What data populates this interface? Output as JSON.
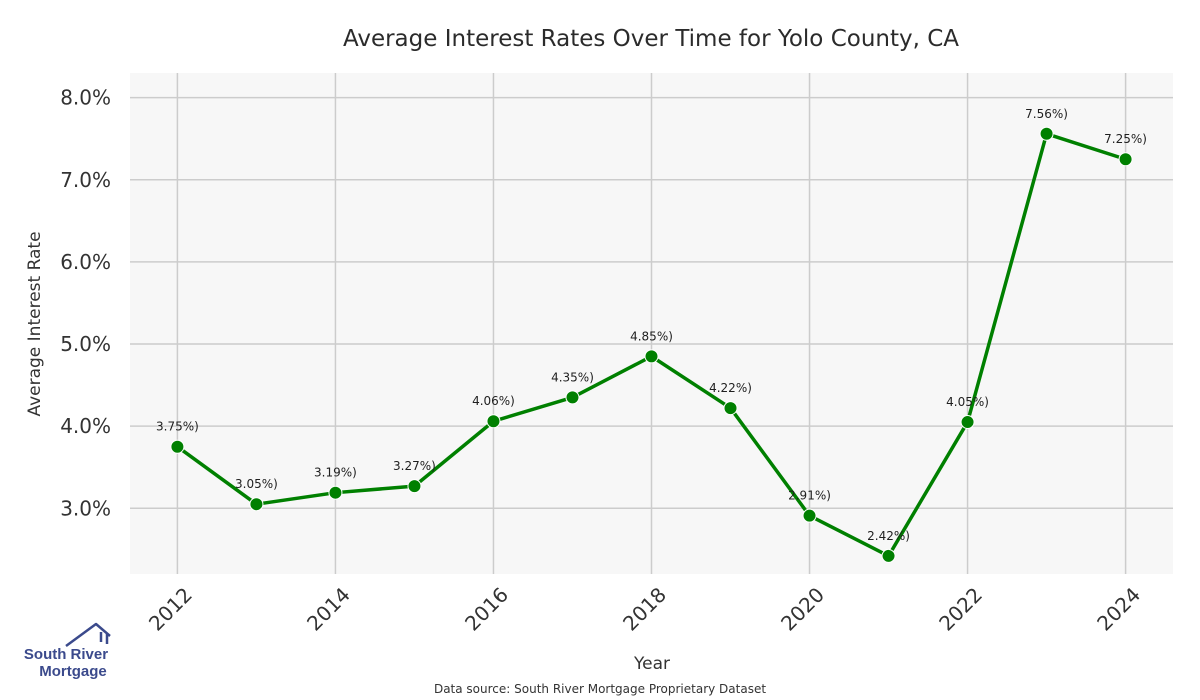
{
  "chart_data": {
    "type": "line",
    "title": "Average Interest Rates Over Time for Yolo County, CA",
    "xlabel": "Year",
    "ylabel": "Average Interest Rate",
    "x": [
      2012,
      2013,
      2014,
      2015,
      2016,
      2017,
      2018,
      2019,
      2020,
      2021,
      2022,
      2023,
      2024
    ],
    "series": [
      {
        "values": [
          3.75,
          3.05,
          3.19,
          3.27,
          4.06,
          4.35,
          4.85,
          4.22,
          2.91,
          2.42,
          4.05,
          7.56,
          7.25
        ],
        "labels": [
          "3.75%)",
          "3.05%)",
          "3.19%)",
          "3.27%)",
          "4.06%)",
          "4.35%)",
          "4.85%)",
          "4.22%)",
          "2.91%)",
          "2.42%)",
          "4.05%)",
          "7.56%)",
          "7.25%)"
        ],
        "color": "#008000"
      }
    ],
    "xticks": [
      "2012",
      "2014",
      "2016",
      "2018",
      "2020",
      "2022",
      "2024"
    ],
    "yticks": [
      "3.0%",
      "4.0%",
      "5.0%",
      "6.0%",
      "7.0%",
      "8.0%"
    ],
    "ylim": [
      2.2,
      8.3
    ],
    "xlim": [
      2011.4,
      2024.6
    ],
    "grid": true,
    "legend": "none",
    "background": "#f7f7f7",
    "grid_color": "#cccccc"
  },
  "source": "Data source: South River Mortgage Proprietary Dataset",
  "logo": {
    "line1": "South River",
    "line2": "Mortgage",
    "color": "#3b4a8c"
  }
}
